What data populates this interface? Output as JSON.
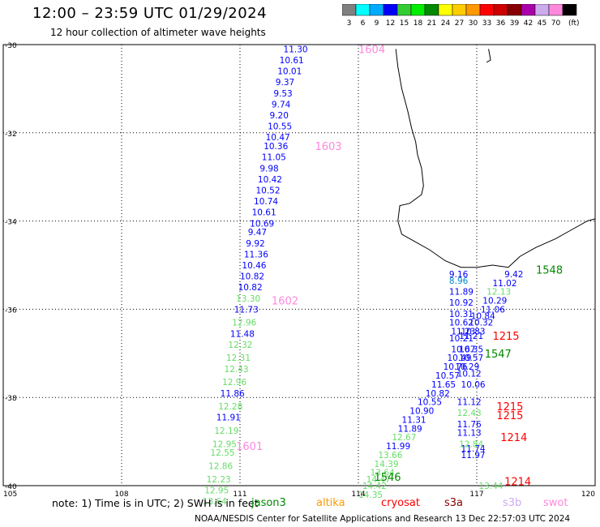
{
  "header": {
    "title": "12:00 – 23:59 UTC 01/29/2024",
    "subtitle": "12 hour collection of altimeter wave heights"
  },
  "colorbar": {
    "unit": "(ft)",
    "bins": [
      {
        "label": "3",
        "color": "#808080"
      },
      {
        "label": "6",
        "color": "#00ffff"
      },
      {
        "label": "9",
        "color": "#00aaff"
      },
      {
        "label": "12",
        "color": "#0000ff"
      },
      {
        "label": "15",
        "color": "#33cc33"
      },
      {
        "label": "18",
        "color": "#00ee00"
      },
      {
        "label": "21",
        "color": "#008800"
      },
      {
        "label": "24",
        "color": "#ffff00"
      },
      {
        "label": "27",
        "color": "#ffcc00"
      },
      {
        "label": "30",
        "color": "#ff9900"
      },
      {
        "label": "33",
        "color": "#ff0000"
      },
      {
        "label": "36",
        "color": "#cc0000"
      },
      {
        "label": "39",
        "color": "#880000"
      },
      {
        "label": "42",
        "color": "#aa00aa"
      },
      {
        "label": "45",
        "color": "#ccaaee"
      },
      {
        "label": "70",
        "color": "#ff88dd"
      },
      {
        "label": "",
        "color": "#000000"
      }
    ]
  },
  "axes": {
    "lat_labels": [
      "-30",
      "-32",
      "-34",
      "-36",
      "-38",
      "-40"
    ],
    "lat_values": [
      -30,
      -32,
      -34,
      -36,
      -38,
      -40
    ],
    "lon_labels": [
      "105",
      "108",
      "111",
      "114",
      "117",
      "120"
    ],
    "lon_values": [
      105,
      108,
      111,
      114,
      117,
      120
    ]
  },
  "tracks": [
    {
      "color": "#ff88dd",
      "time_labels": [
        {
          "text": "1604",
          "lon": 114.0,
          "lat": -30.1
        },
        {
          "text": "1603",
          "lon": 112.9,
          "lat": -32.3
        },
        {
          "text": "1602",
          "lon": 111.8,
          "lat": -35.8
        },
        {
          "text": "1601",
          "lon": 110.9,
          "lat": -39.1
        }
      ]
    },
    {
      "color": "#008800",
      "time_labels": [
        {
          "text": "1548",
          "lon": 118.5,
          "lat": -35.1
        },
        {
          "text": "1547",
          "lon": 117.2,
          "lat": -37.0
        },
        {
          "text": "1546",
          "lon": 114.4,
          "lat": -39.8
        }
      ]
    },
    {
      "color": "#ff0000",
      "time_labels": [
        {
          "text": "1215",
          "lon": 117.4,
          "lat": -36.6
        },
        {
          "text": "1215",
          "lon": 117.5,
          "lat": -38.2
        },
        {
          "text": "1215",
          "lon": 117.5,
          "lat": -38.4
        },
        {
          "text": "1214",
          "lon": 117.6,
          "lat": -38.9
        },
        {
          "text": "1214",
          "lon": 117.7,
          "lat": -39.9
        }
      ]
    }
  ],
  "wave_labels": [
    {
      "text": "11.30",
      "lon": 112.1,
      "lat": -30.1,
      "color": "#0000ff"
    },
    {
      "text": "10.61",
      "lon": 112.0,
      "lat": -30.35,
      "color": "#0000ff"
    },
    {
      "text": "10.01",
      "lon": 111.95,
      "lat": -30.6,
      "color": "#0000ff"
    },
    {
      "text": "9.37",
      "lon": 111.9,
      "lat": -30.85,
      "color": "#0000ff"
    },
    {
      "text": "9.53",
      "lon": 111.85,
      "lat": -31.1,
      "color": "#0000ff"
    },
    {
      "text": "9.74",
      "lon": 111.8,
      "lat": -31.35,
      "color": "#0000ff"
    },
    {
      "text": "9.20",
      "lon": 111.75,
      "lat": -31.6,
      "color": "#0000ff"
    },
    {
      "text": "10.55",
      "lon": 111.7,
      "lat": -31.85,
      "color": "#0000ff"
    },
    {
      "text": "10.47",
      "lon": 111.65,
      "lat": -32.1,
      "color": "#0000ff"
    },
    {
      "text": "10.36",
      "lon": 111.6,
      "lat": -32.3,
      "color": "#0000ff"
    },
    {
      "text": "11.05",
      "lon": 111.55,
      "lat": -32.55,
      "color": "#0000ff"
    },
    {
      "text": "9.98",
      "lon": 111.5,
      "lat": -32.8,
      "color": "#0000ff"
    },
    {
      "text": "10.42",
      "lon": 111.45,
      "lat": -33.05,
      "color": "#0000ff"
    },
    {
      "text": "10.52",
      "lon": 111.4,
      "lat": -33.3,
      "color": "#0000ff"
    },
    {
      "text": "10.74",
      "lon": 111.35,
      "lat": -33.55,
      "color": "#0000ff"
    },
    {
      "text": "10.61",
      "lon": 111.3,
      "lat": -33.8,
      "color": "#0000ff"
    },
    {
      "text": "10.69",
      "lon": 111.25,
      "lat": -34.05,
      "color": "#0000ff"
    },
    {
      "text": "9.47",
      "lon": 111.2,
      "lat": -34.25,
      "color": "#0000ff"
    },
    {
      "text": "9.92",
      "lon": 111.15,
      "lat": -34.5,
      "color": "#0000ff"
    },
    {
      "text": "11.36",
      "lon": 111.1,
      "lat": -34.75,
      "color": "#0000ff"
    },
    {
      "text": "10.46",
      "lon": 111.05,
      "lat": -35.0,
      "color": "#0000ff"
    },
    {
      "text": "10.82",
      "lon": 111.0,
      "lat": -35.25,
      "color": "#0000ff"
    },
    {
      "text": "10.82",
      "lon": 110.95,
      "lat": -35.5,
      "color": "#0000ff"
    },
    {
      "text": "13.30",
      "lon": 110.9,
      "lat": -35.75,
      "color": "#66dd66"
    },
    {
      "text": "11.73",
      "lon": 110.85,
      "lat": -36.0,
      "color": "#0000ff"
    },
    {
      "text": "12.96",
      "lon": 110.8,
      "lat": -36.3,
      "color": "#66dd66"
    },
    {
      "text": "11.48",
      "lon": 110.75,
      "lat": -36.55,
      "color": "#0000ff"
    },
    {
      "text": "12.32",
      "lon": 110.7,
      "lat": -36.8,
      "color": "#66dd66"
    },
    {
      "text": "12.31",
      "lon": 110.65,
      "lat": -37.1,
      "color": "#66dd66"
    },
    {
      "text": "12.43",
      "lon": 110.6,
      "lat": -37.35,
      "color": "#66dd66"
    },
    {
      "text": "12.96",
      "lon": 110.55,
      "lat": -37.65,
      "color": "#66dd66"
    },
    {
      "text": "11.86",
      "lon": 110.5,
      "lat": -37.9,
      "color": "#0000ff"
    },
    {
      "text": "12.28",
      "lon": 110.45,
      "lat": -38.2,
      "color": "#66dd66"
    },
    {
      "text": "11.91",
      "lon": 110.4,
      "lat": -38.45,
      "color": "#0000ff"
    },
    {
      "text": "12.19",
      "lon": 110.35,
      "lat": -38.75,
      "color": "#66dd66"
    },
    {
      "text": "12.95",
      "lon": 110.3,
      "lat": -39.05,
      "color": "#66dd66"
    },
    {
      "text": "12.55",
      "lon": 110.25,
      "lat": -39.25,
      "color": "#66dd66"
    },
    {
      "text": "12.86",
      "lon": 110.2,
      "lat": -39.55,
      "color": "#66dd66"
    },
    {
      "text": "12.23",
      "lon": 110.15,
      "lat": -39.85,
      "color": "#66dd66"
    },
    {
      "text": "12.95",
      "lon": 110.1,
      "lat": -40.1,
      "color": "#66dd66"
    },
    {
      "text": "13.64",
      "lon": 110.05,
      "lat": -40.35,
      "color": "#66dd66"
    },
    {
      "text": "9.16",
      "lon": 116.3,
      "lat": -35.2,
      "color": "#0000ff"
    },
    {
      "text": "8.96",
      "lon": 116.3,
      "lat": -35.35,
      "color": "#0088cc"
    },
    {
      "text": "9.42",
      "lon": 117.7,
      "lat": -35.2,
      "color": "#0000ff"
    },
    {
      "text": "11.02",
      "lon": 117.4,
      "lat": -35.4,
      "color": "#0000ff"
    },
    {
      "text": "11.89",
      "lon": 116.3,
      "lat": -35.6,
      "color": "#0000ff"
    },
    {
      "text": "12.13",
      "lon": 117.25,
      "lat": -35.6,
      "color": "#66dd66"
    },
    {
      "text": "10.92",
      "lon": 116.3,
      "lat": -35.85,
      "color": "#0000ff"
    },
    {
      "text": "10.29",
      "lon": 117.15,
      "lat": -35.8,
      "color": "#0000ff"
    },
    {
      "text": "11.06",
      "lon": 117.1,
      "lat": -36.0,
      "color": "#0000ff"
    },
    {
      "text": "10.31",
      "lon": 116.3,
      "lat": -36.1,
      "color": "#0000ff"
    },
    {
      "text": "10.84",
      "lon": 116.85,
      "lat": -36.15,
      "color": "#0000ff"
    },
    {
      "text": "10.62",
      "lon": 116.3,
      "lat": -36.3,
      "color": "#0000ff"
    },
    {
      "text": "10.32",
      "lon": 116.8,
      "lat": -36.3,
      "color": "#0000ff"
    },
    {
      "text": "11.23",
      "lon": 116.35,
      "lat": -36.5,
      "color": "#0000ff"
    },
    {
      "text": "10.83",
      "lon": 116.6,
      "lat": -36.5,
      "color": "#0000ff"
    },
    {
      "text": "10.21",
      "lon": 116.3,
      "lat": -36.65,
      "color": "#0000ff"
    },
    {
      "text": "11.21",
      "lon": 116.55,
      "lat": -36.6,
      "color": "#0000ff"
    },
    {
      "text": "10.67",
      "lon": 116.35,
      "lat": -36.9,
      "color": "#0000ff"
    },
    {
      "text": "10.35",
      "lon": 116.55,
      "lat": -36.9,
      "color": "#0000ff"
    },
    {
      "text": "10.49",
      "lon": 116.25,
      "lat": -37.1,
      "color": "#0000ff"
    },
    {
      "text": "10.57",
      "lon": 116.55,
      "lat": -37.1,
      "color": "#0000ff"
    },
    {
      "text": "10.76",
      "lon": 116.15,
      "lat": -37.3,
      "color": "#0000ff"
    },
    {
      "text": "10.29",
      "lon": 116.45,
      "lat": -37.3,
      "color": "#0000ff"
    },
    {
      "text": "10.12",
      "lon": 116.5,
      "lat": -37.45,
      "color": "#0000ff"
    },
    {
      "text": "10.57",
      "lon": 115.95,
      "lat": -37.5,
      "color": "#0000ff"
    },
    {
      "text": "11.65",
      "lon": 115.85,
      "lat": -37.7,
      "color": "#0000ff"
    },
    {
      "text": "10.06",
      "lon": 116.6,
      "lat": -37.7,
      "color": "#0000ff"
    },
    {
      "text": "10.82",
      "lon": 115.7,
      "lat": -37.9,
      "color": "#0000ff"
    },
    {
      "text": "10.55",
      "lon": 115.5,
      "lat": -38.1,
      "color": "#0000ff"
    },
    {
      "text": "11.12",
      "lon": 116.5,
      "lat": -38.1,
      "color": "#0000ff"
    },
    {
      "text": "10.90",
      "lon": 115.3,
      "lat": -38.3,
      "color": "#0000ff"
    },
    {
      "text": "12.43",
      "lon": 116.5,
      "lat": -38.35,
      "color": "#66dd66"
    },
    {
      "text": "11.31",
      "lon": 115.1,
      "lat": -38.5,
      "color": "#0000ff"
    },
    {
      "text": "11.76",
      "lon": 116.5,
      "lat": -38.6,
      "color": "#0000ff"
    },
    {
      "text": "11.89",
      "lon": 115.0,
      "lat": -38.7,
      "color": "#0000ff"
    },
    {
      "text": "11.13",
      "lon": 116.5,
      "lat": -38.8,
      "color": "#0000ff"
    },
    {
      "text": "12.67",
      "lon": 114.85,
      "lat": -38.9,
      "color": "#66dd66"
    },
    {
      "text": "11.99",
      "lon": 114.7,
      "lat": -39.1,
      "color": "#0000ff"
    },
    {
      "text": "12.84",
      "lon": 116.55,
      "lat": -39.05,
      "color": "#66dd66"
    },
    {
      "text": "11.74",
      "lon": 116.6,
      "lat": -39.15,
      "color": "#0000ff"
    },
    {
      "text": "13.66",
      "lon": 114.5,
      "lat": -39.3,
      "color": "#66dd66"
    },
    {
      "text": "11.97",
      "lon": 116.6,
      "lat": -39.3,
      "color": "#0000ff"
    },
    {
      "text": "14.39",
      "lon": 114.4,
      "lat": -39.5,
      "color": "#66dd66"
    },
    {
      "text": "13.64",
      "lon": 114.3,
      "lat": -39.7,
      "color": "#66dd66"
    },
    {
      "text": "14.47",
      "lon": 114.2,
      "lat": -39.85,
      "color": "#66dd66"
    },
    {
      "text": "14.42",
      "lon": 114.1,
      "lat": -40.0,
      "color": "#66dd66"
    },
    {
      "text": "14.35",
      "lon": 114.0,
      "lat": -40.2,
      "color": "#66dd66"
    },
    {
      "text": "13.44",
      "lon": 117.05,
      "lat": -40.0,
      "color": "#66dd66"
    }
  ],
  "coastline": [
    [
      114.95,
      -30.1
    ],
    [
      115.0,
      -30.5
    ],
    [
      115.1,
      -31.0
    ],
    [
      115.25,
      -31.5
    ],
    [
      115.35,
      -31.9
    ],
    [
      115.45,
      -32.2
    ],
    [
      115.5,
      -32.5
    ],
    [
      115.6,
      -32.8
    ],
    [
      115.65,
      -33.2
    ],
    [
      115.6,
      -33.4
    ],
    [
      115.3,
      -33.6
    ],
    [
      115.05,
      -33.65
    ],
    [
      115.0,
      -34.0
    ],
    [
      115.1,
      -34.3
    ],
    [
      115.4,
      -34.45
    ],
    [
      115.8,
      -34.65
    ],
    [
      116.2,
      -34.9
    ],
    [
      116.6,
      -35.05
    ],
    [
      117.0,
      -35.05
    ],
    [
      117.4,
      -35.0
    ],
    [
      117.8,
      -35.05
    ],
    [
      118.1,
      -34.8
    ],
    [
      118.5,
      -34.6
    ],
    [
      119.0,
      -34.4
    ],
    [
      119.4,
      -34.2
    ],
    [
      119.8,
      -34.0
    ],
    [
      120.0,
      -33.95
    ]
  ],
  "footer": {
    "note": "note: 1) Time is in UTC; 2) SWH is in feet",
    "missions": [
      {
        "label": "jason3",
        "color": "#008800"
      },
      {
        "label": "altika",
        "color": "#ff9900"
      },
      {
        "label": "cryosat",
        "color": "#ff0000"
      },
      {
        "label": "s3a",
        "color": "#880000"
      },
      {
        "label": "s3b",
        "color": "#ccaaee"
      },
      {
        "label": "swot",
        "color": "#ff88dd"
      }
    ],
    "credit": "NOAA/NESDIS Center for Satellite Applications and Research    13 Dec 22:57:03 UTC 2024"
  }
}
